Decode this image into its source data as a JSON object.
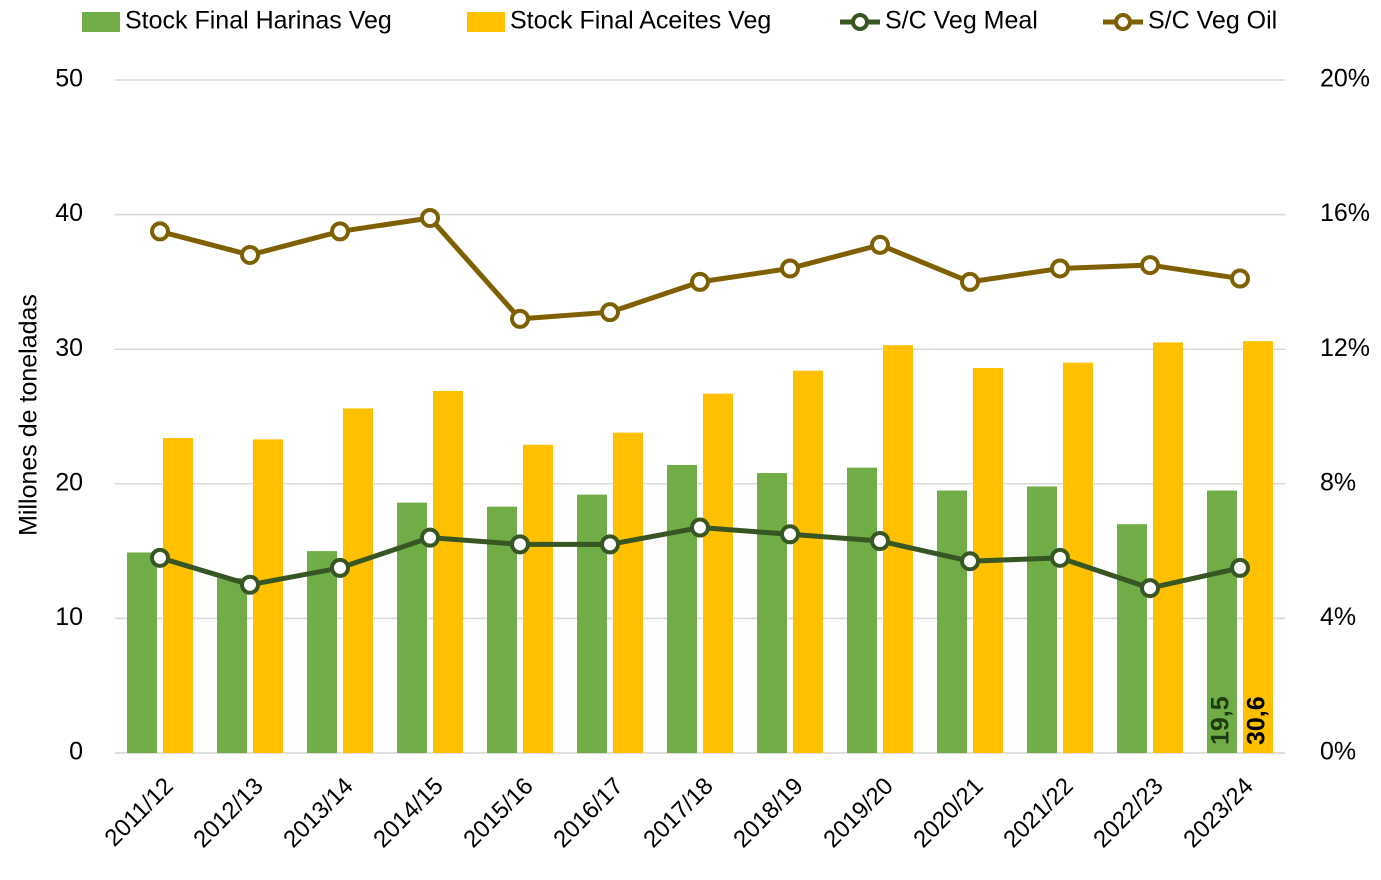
{
  "chart_data": {
    "type": "bar_line",
    "y_label": "Millones de toneladas",
    "categories": [
      "2011/12",
      "2012/13",
      "2013/14",
      "2014/15",
      "2015/16",
      "2016/17",
      "2017/18",
      "2018/19",
      "2019/20",
      "2020/21",
      "2021/22",
      "2022/23",
      "2023/24"
    ],
    "series": [
      {
        "name": "Stock Final Harinas Veg",
        "type": "bar",
        "color": "#70ad47",
        "values": [
          14.9,
          13.0,
          15.0,
          18.6,
          18.3,
          19.2,
          21.4,
          20.8,
          21.2,
          19.5,
          19.8,
          17.0,
          19.5
        ],
        "value_labels": [
          null,
          null,
          null,
          null,
          null,
          null,
          null,
          null,
          null,
          null,
          null,
          null,
          "19,5"
        ],
        "label_color": "#1e3b12"
      },
      {
        "name": "Stock Final Aceites Veg",
        "type": "bar",
        "color": "#ffc000",
        "values": [
          23.4,
          23.3,
          25.6,
          26.9,
          22.9,
          23.8,
          26.7,
          28.4,
          30.3,
          28.6,
          29.0,
          30.5,
          30.6
        ],
        "value_labels": [
          null,
          null,
          null,
          null,
          null,
          null,
          null,
          null,
          null,
          null,
          null,
          null,
          "30,6"
        ],
        "label_color": "#000000"
      },
      {
        "name": "S/C Veg Meal",
        "type": "line",
        "axis": "y2",
        "color": "#375623",
        "values": [
          5.8,
          5.0,
          5.5,
          6.4,
          6.2,
          6.2,
          6.7,
          6.5,
          6.3,
          5.7,
          5.8,
          4.9,
          5.5
        ]
      },
      {
        "name": "S/C Veg Oil",
        "type": "line",
        "axis": "y2",
        "color": "#7f6000",
        "values": [
          15.5,
          14.8,
          15.5,
          15.9,
          12.9,
          13.1,
          14.0,
          14.4,
          15.1,
          14.0,
          14.4,
          14.5,
          14.1
        ]
      }
    ],
    "ylim": [
      0,
      50
    ],
    "yticks": [
      0,
      10,
      20,
      30,
      40,
      50
    ],
    "y2lim": [
      0,
      20
    ],
    "y2ticks": [
      {
        "value": 0,
        "label": "0%"
      },
      {
        "value": 4,
        "label": "4%"
      },
      {
        "value": 8,
        "label": "8%"
      },
      {
        "value": 12,
        "label": "12%"
      },
      {
        "value": 16,
        "label": "16%"
      },
      {
        "value": 20,
        "label": "20%"
      }
    ],
    "grid": true,
    "legend": "top"
  }
}
